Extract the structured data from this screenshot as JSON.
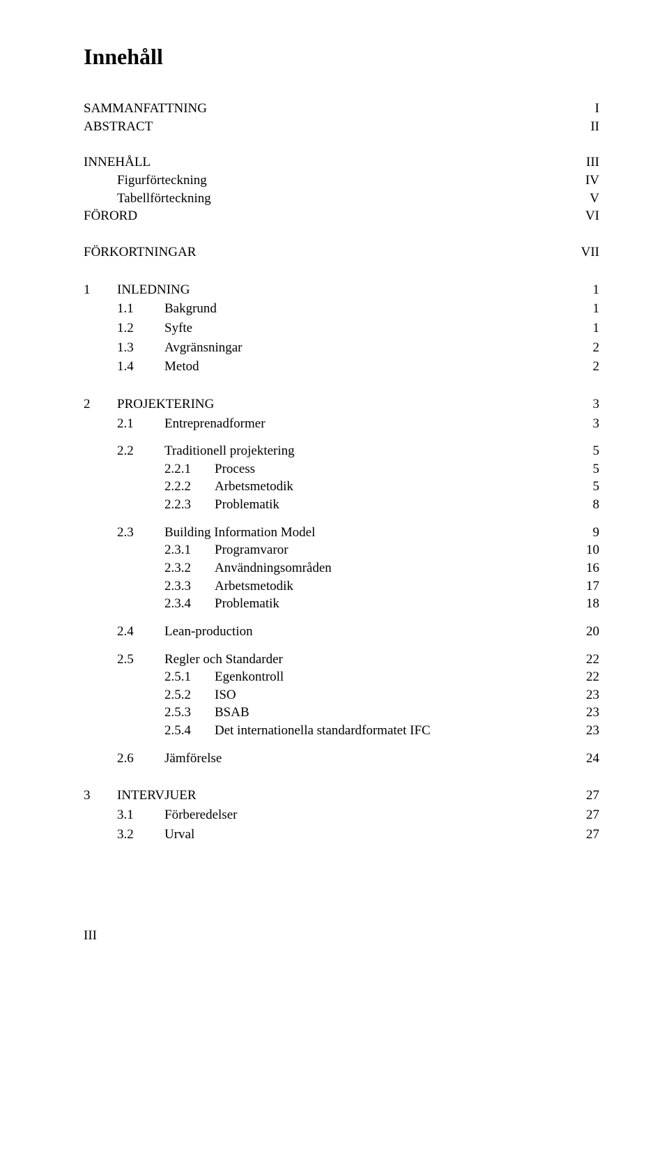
{
  "title": "Innehåll",
  "front_matter": [
    {
      "label": "SAMMANFATTNING",
      "page": "I",
      "indent": false
    },
    {
      "label": "ABSTRACT",
      "page": "II",
      "indent": false
    },
    {
      "label": "INNEHÅLL",
      "page": "III",
      "indent": false,
      "gap_before": true
    },
    {
      "label": "Figurförteckning",
      "page": "IV",
      "indent": true
    },
    {
      "label": "Tabellförteckning",
      "page": "V",
      "indent": true
    },
    {
      "label": "FÖRORD",
      "page": "VI",
      "indent": false
    },
    {
      "label": "FÖRKORTNINGAR",
      "page": "VII",
      "indent": false,
      "gap_before": true
    }
  ],
  "entries": [
    {
      "level": 0,
      "num": "1",
      "label": "INLEDNING",
      "page": "1"
    },
    {
      "level": 1,
      "num": "1.1",
      "label": "Bakgrund",
      "page": "1"
    },
    {
      "level": 1,
      "num": "1.2",
      "label": "Syfte",
      "page": "1"
    },
    {
      "level": 1,
      "num": "1.3",
      "label": "Avgränsningar",
      "page": "2"
    },
    {
      "level": 1,
      "num": "1.4",
      "label": "Metod",
      "page": "2"
    },
    {
      "level": 0,
      "num": "2",
      "label": "PROJEKTERING",
      "page": "3"
    },
    {
      "level": 1,
      "num": "2.1",
      "label": "Entreprenadformer",
      "page": "3"
    },
    {
      "level": 1,
      "num": "2.2",
      "label": "Traditionell projektering",
      "page": "5",
      "gap": true
    },
    {
      "level": 2,
      "num": "2.2.1",
      "label": "Process",
      "page": "5"
    },
    {
      "level": 2,
      "num": "2.2.2",
      "label": "Arbetsmetodik",
      "page": "5"
    },
    {
      "level": 2,
      "num": "2.2.3",
      "label": "Problematik",
      "page": "8"
    },
    {
      "level": 1,
      "num": "2.3",
      "label": "Building Information Model",
      "page": "9",
      "gap": true
    },
    {
      "level": 2,
      "num": "2.3.1",
      "label": "Programvaror",
      "page": "10"
    },
    {
      "level": 2,
      "num": "2.3.2",
      "label": "Användningsområden",
      "page": "16"
    },
    {
      "level": 2,
      "num": "2.3.3",
      "label": "Arbetsmetodik",
      "page": "17"
    },
    {
      "level": 2,
      "num": "2.3.4",
      "label": "Problematik",
      "page": "18"
    },
    {
      "level": 1,
      "num": "2.4",
      "label": "Lean-production",
      "page": "20",
      "gap": true
    },
    {
      "level": 1,
      "num": "2.5",
      "label": "Regler och Standarder",
      "page": "22",
      "gap": true
    },
    {
      "level": 2,
      "num": "2.5.1",
      "label": "Egenkontroll",
      "page": "22"
    },
    {
      "level": 2,
      "num": "2.5.2",
      "label": "ISO",
      "page": "23"
    },
    {
      "level": 2,
      "num": "2.5.3",
      "label": "BSAB",
      "page": "23"
    },
    {
      "level": 2,
      "num": "2.5.4",
      "label": "Det internationella standardformatet IFC",
      "page": "23"
    },
    {
      "level": 1,
      "num": "2.6",
      "label": "Jämförelse",
      "page": "24",
      "gap": true
    },
    {
      "level": 0,
      "num": "3",
      "label": "INTERVJUER",
      "page": "27"
    },
    {
      "level": 1,
      "num": "3.1",
      "label": "Förberedelser",
      "page": "27"
    },
    {
      "level": 1,
      "num": "3.2",
      "label": "Urval",
      "page": "27"
    }
  ],
  "footer": "III"
}
